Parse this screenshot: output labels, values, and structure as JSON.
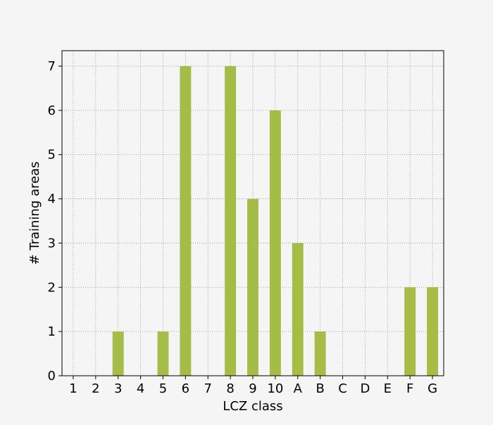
{
  "chart_data": {
    "type": "bar",
    "categories": [
      "1",
      "2",
      "3",
      "4",
      "5",
      "6",
      "7",
      "8",
      "9",
      "10",
      "A",
      "B",
      "C",
      "D",
      "E",
      "F",
      "G"
    ],
    "values": [
      0,
      0,
      1,
      0,
      1,
      7,
      0,
      7,
      4,
      6,
      3,
      1,
      0,
      0,
      0,
      2,
      2
    ],
    "yticks": [
      "0",
      "1",
      "2",
      "3",
      "4",
      "5",
      "6",
      "7"
    ],
    "title": "",
    "xlabel": "LCZ class",
    "ylabel": "# Training areas",
    "ylim": [
      0,
      7.35
    ],
    "grid": true,
    "grid_style": "dotted",
    "legend": false,
    "colors": {
      "bar": "#a5bd47",
      "background": "#f5f5f5",
      "grid": "#8c8c8c",
      "axes": "#000000"
    }
  }
}
